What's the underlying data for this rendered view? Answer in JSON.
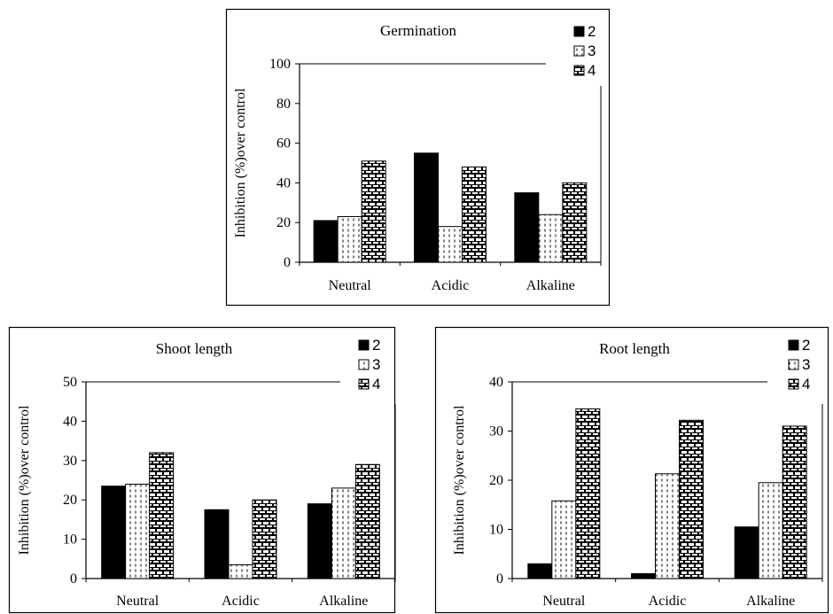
{
  "chart_data": [
    {
      "type": "bar",
      "title": "Germination",
      "ylabel": "Inhibition (%)over control",
      "xlabel": "",
      "categories": [
        "Neutral",
        "Acidic",
        "Alkaline"
      ],
      "ylim": [
        0,
        100
      ],
      "yticks": [
        0,
        20,
        40,
        60,
        80,
        100
      ],
      "legend_position": "top-right",
      "series": [
        {
          "name": "2",
          "values": [
            21,
            55,
            35
          ]
        },
        {
          "name": "3",
          "values": [
            23,
            18,
            24
          ]
        },
        {
          "name": "4",
          "values": [
            51,
            48,
            40
          ]
        }
      ]
    },
    {
      "type": "bar",
      "title": "Shoot length",
      "ylabel": "Inhibition (%)over control",
      "xlabel": "",
      "categories": [
        "Neutral",
        "Acidic",
        "Alkaline"
      ],
      "ylim": [
        0,
        50
      ],
      "yticks": [
        0,
        10,
        20,
        30,
        40,
        50
      ],
      "legend_position": "top-right",
      "series": [
        {
          "name": "2",
          "values": [
            23.5,
            17.5,
            19
          ]
        },
        {
          "name": "3",
          "values": [
            24,
            3.5,
            23
          ]
        },
        {
          "name": "4",
          "values": [
            32,
            20,
            29
          ]
        }
      ]
    },
    {
      "type": "bar",
      "title": "Root length",
      "ylabel": "Inhibition (%)over control",
      "xlabel": "",
      "categories": [
        "Neutral",
        "Acidic",
        "Alkaline"
      ],
      "ylim": [
        0,
        40
      ],
      "yticks": [
        0,
        10,
        20,
        30,
        40
      ],
      "legend_position": "top-right",
      "series": [
        {
          "name": "2",
          "values": [
            3,
            1,
            10.5
          ]
        },
        {
          "name": "3",
          "values": [
            15.8,
            21.3,
            19.5
          ]
        },
        {
          "name": "4",
          "values": [
            34.5,
            32.2,
            31
          ]
        }
      ]
    }
  ]
}
